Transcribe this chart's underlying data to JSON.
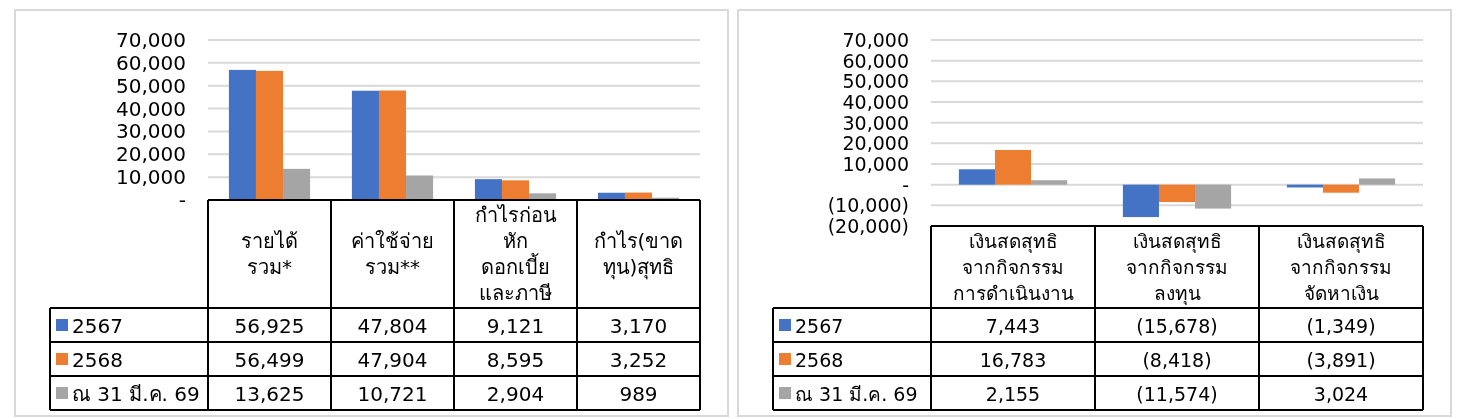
{
  "chart_data": [
    {
      "type": "bar",
      "categories": [
        "รายได้\nรวม*",
        "ค่าใช้จ่าย\nรวม**",
        "กำไรก่อน\nหัก\nดอกเบี้ย\nและภาษี",
        "กำไร(ขาด\nทุน)สุทธิ"
      ],
      "series": [
        {
          "name": "2567",
          "color": "#4472c4",
          "values": [
            56925,
            47804,
            9121,
            3170
          ],
          "value_labels": [
            "56,925",
            "47,804",
            "9,121",
            "3,170"
          ]
        },
        {
          "name": "2568",
          "color": "#ed7d31",
          "values": [
            56499,
            47904,
            8595,
            3252
          ],
          "value_labels": [
            "56,499",
            "47,904",
            "8,595",
            "3,252"
          ]
        },
        {
          "name": "ณ 31 มี.ค. 69",
          "color": "#a5a5a5",
          "values": [
            13625,
            10721,
            2904,
            989
          ],
          "value_labels": [
            "13,625",
            "10,721",
            "2,904",
            "989"
          ]
        }
      ],
      "ylim": [
        0,
        70000
      ],
      "yticks": [
        {
          "value": 0,
          "label": "-"
        },
        {
          "value": 10000,
          "label": "10,000"
        },
        {
          "value": 20000,
          "label": "20,000"
        },
        {
          "value": 30000,
          "label": "30,000"
        },
        {
          "value": 40000,
          "label": "40,000"
        },
        {
          "value": 50000,
          "label": "50,000"
        },
        {
          "value": 60000,
          "label": "60,000"
        },
        {
          "value": 70000,
          "label": "70,000"
        }
      ],
      "grid": "y",
      "legend": "bottom"
    },
    {
      "type": "bar",
      "categories": [
        "เงินสดสุทธิ\nจากกิจกรรม\nการดำเนินงาน",
        "เงินสดสุทธิ\nจากกิจกรรม\nลงทุน",
        "เงินสดสุทธิ\nจากกิจกรรม\nจัดหาเงิน"
      ],
      "series": [
        {
          "name": "2567",
          "color": "#4472c4",
          "values": [
            7443,
            -15678,
            -1349
          ],
          "value_labels": [
            "7,443",
            "(15,678)",
            "(1,349)"
          ]
        },
        {
          "name": "2568",
          "color": "#ed7d31",
          "values": [
            16783,
            -8418,
            -3891
          ],
          "value_labels": [
            "16,783",
            "(8,418)",
            "(3,891)"
          ]
        },
        {
          "name": "ณ 31 มี.ค. 69",
          "color": "#a5a5a5",
          "values": [
            2155,
            -11574,
            3024
          ],
          "value_labels": [
            "2,155",
            "(11,574)",
            "3,024"
          ]
        }
      ],
      "ylim": [
        -20000,
        70000
      ],
      "yticks": [
        {
          "value": -20000,
          "label": "(20,000)"
        },
        {
          "value": -10000,
          "label": "(10,000)"
        },
        {
          "value": 0,
          "label": "-"
        },
        {
          "value": 10000,
          "label": "10,000"
        },
        {
          "value": 20000,
          "label": "20,000"
        },
        {
          "value": 30000,
          "label": "30,000"
        },
        {
          "value": 40000,
          "label": "40,000"
        },
        {
          "value": 50000,
          "label": "50,000"
        },
        {
          "value": 60000,
          "label": "60,000"
        },
        {
          "value": 70000,
          "label": "70,000"
        }
      ],
      "grid": "y",
      "legend": "bottom"
    }
  ]
}
